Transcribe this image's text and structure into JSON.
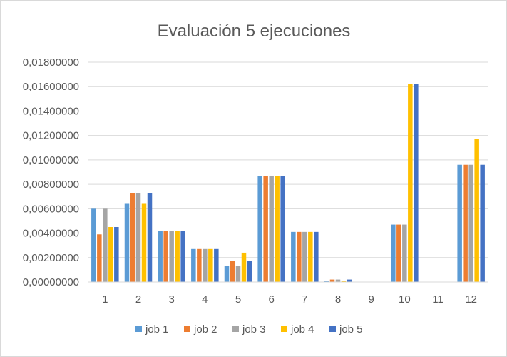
{
  "chart_data": {
    "type": "bar",
    "title": "Evaluación 5 ejecuciones",
    "xlabel": "",
    "ylabel": "",
    "categories": [
      "1",
      "2",
      "3",
      "4",
      "5",
      "6",
      "7",
      "8",
      "9",
      "10",
      "11",
      "12"
    ],
    "ylim": [
      0,
      0.018
    ],
    "yticks": [
      0,
      0.002,
      0.004,
      0.006,
      0.008,
      0.01,
      0.012,
      0.014,
      0.016,
      0.018
    ],
    "ytick_labels": [
      "0,00000000",
      "0,00200000",
      "0,00400000",
      "0,00600000",
      "0,00800000",
      "0,01000000",
      "0,01200000",
      "0,01400000",
      "0,01600000",
      "0,01800000"
    ],
    "grid": true,
    "legend_position": "bottom",
    "series": [
      {
        "name": "job 1",
        "color": "#5b9bd5",
        "values": [
          0.006,
          0.0064,
          0.0042,
          0.0027,
          0.0013,
          0.0087,
          0.0041,
          0.0001,
          0,
          0.0047,
          0,
          0.0096
        ]
      },
      {
        "name": "job 2",
        "color": "#ed7d31",
        "values": [
          0.0039,
          0.0073,
          0.0042,
          0.0027,
          0.0017,
          0.0087,
          0.0041,
          0.0002,
          0,
          0.0047,
          0,
          0.0096
        ]
      },
      {
        "name": "job 3",
        "color": "#a5a5a5",
        "values": [
          0.006,
          0.0073,
          0.0042,
          0.0027,
          0.0013,
          0.0087,
          0.0041,
          0.0002,
          0,
          0.0047,
          0,
          0.0096
        ]
      },
      {
        "name": "job 4",
        "color": "#ffc000",
        "values": [
          0.0045,
          0.0064,
          0.0042,
          0.0027,
          0.0024,
          0.0087,
          0.0041,
          0.0001,
          0,
          0.0162,
          0,
          0.0117
        ]
      },
      {
        "name": "job 5",
        "color": "#4472c4",
        "values": [
          0.0045,
          0.0073,
          0.0042,
          0.0027,
          0.0017,
          0.0087,
          0.0041,
          0.0002,
          0,
          0.0162,
          0,
          0.0096
        ]
      }
    ]
  }
}
